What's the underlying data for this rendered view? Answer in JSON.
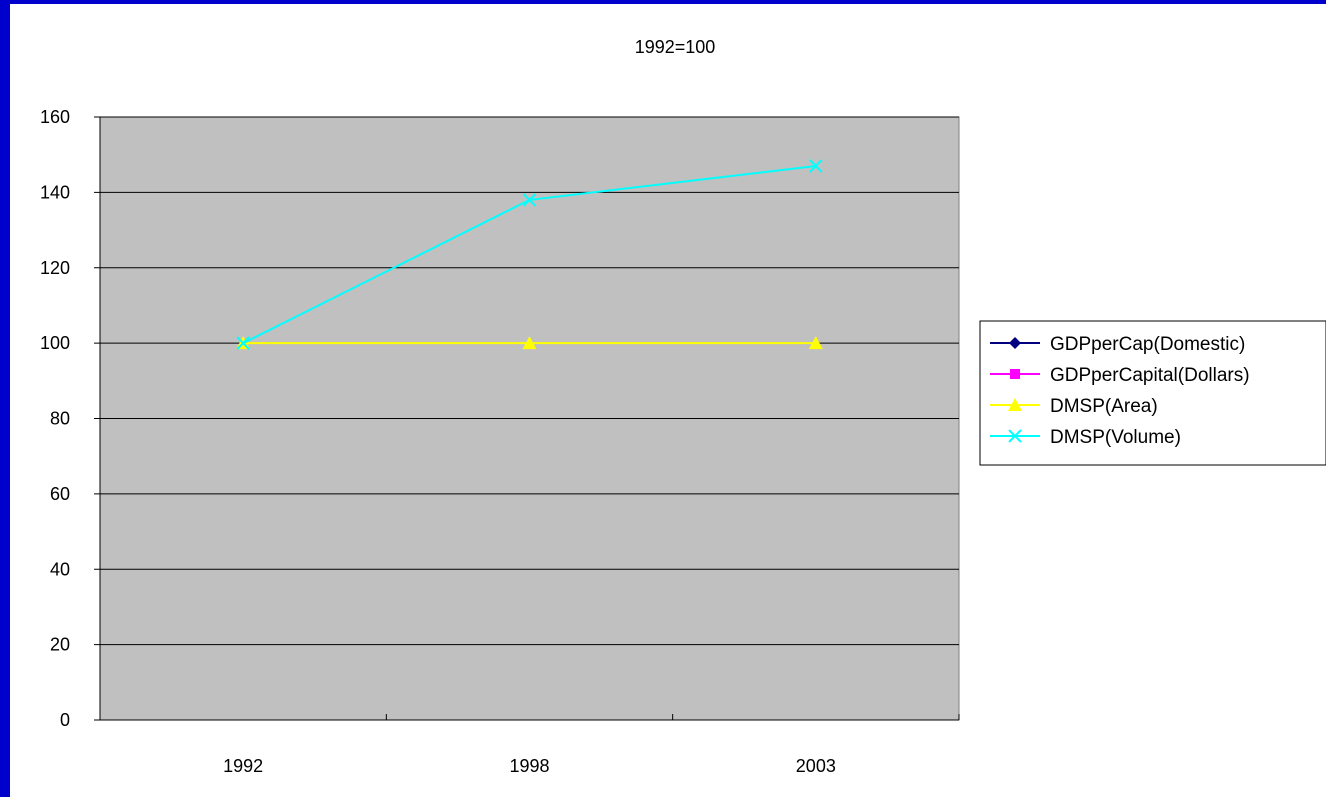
{
  "chart_data": {
    "type": "line",
    "title": "1992=100",
    "categories": [
      "1992",
      "1998",
      "2003"
    ],
    "ylim": [
      0,
      160
    ],
    "yticks": [
      0,
      20,
      40,
      60,
      80,
      100,
      120,
      140,
      160
    ],
    "grid": true,
    "legend_position": "right",
    "plot_background": "#c0c0c0",
    "series": [
      {
        "name": "GDPperCap(Domestic)",
        "color": "#000080",
        "marker": "diamond",
        "values": [
          null,
          null,
          null
        ]
      },
      {
        "name": "GDPperCapital(Dollars)",
        "color": "#ff00ff",
        "marker": "square",
        "values": [
          null,
          null,
          null
        ]
      },
      {
        "name": "DMSP(Area)",
        "color": "#ffff00",
        "marker": "triangle",
        "values": [
          100,
          100,
          100
        ]
      },
      {
        "name": "DMSP(Volume)",
        "color": "#00ffff",
        "marker": "x",
        "values": [
          100,
          138,
          147
        ]
      }
    ]
  }
}
